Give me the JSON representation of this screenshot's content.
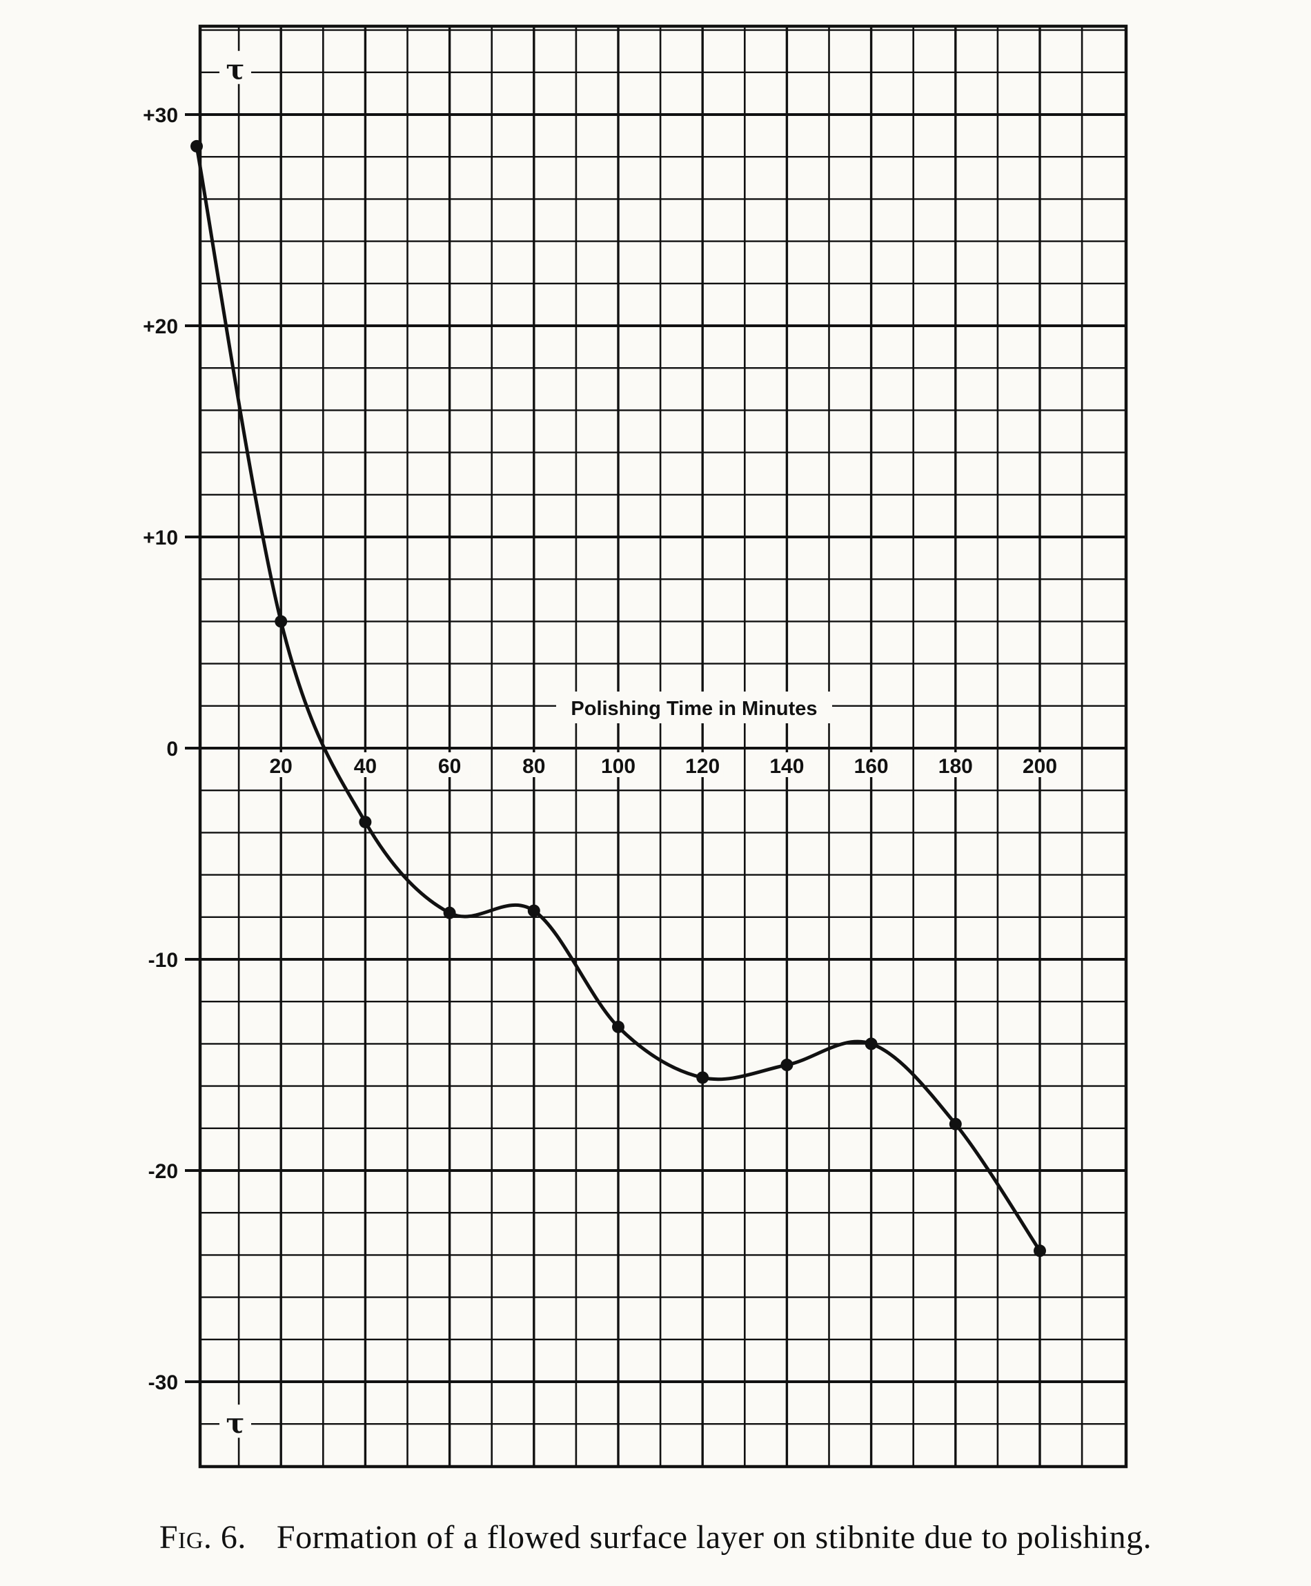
{
  "caption": {
    "figure_label": "Fig. 6.",
    "text": "Formation of a flowed surface layer on stibnite due to polishing."
  },
  "chart_data": {
    "type": "line",
    "title": "",
    "xlabel": "Polishing Time in Minutes",
    "ylabel": "",
    "x_tick_labels": [
      "20",
      "40",
      "60",
      "80",
      "100",
      "120",
      "140",
      "160",
      "180",
      "200"
    ],
    "x_ticks": [
      20,
      40,
      60,
      80,
      100,
      120,
      140,
      160,
      180,
      200
    ],
    "y_tick_labels": [
      "+30",
      "+20",
      "+10",
      "0",
      "-10",
      "-20",
      "-30"
    ],
    "y_ticks": [
      30,
      20,
      10,
      0,
      -10,
      -20,
      -30
    ],
    "xlim": [
      0,
      220
    ],
    "ylim": [
      -34,
      34
    ],
    "grid": true,
    "marker_symbol": "τ",
    "series": [
      {
        "x": [
          0,
          20,
          40,
          60,
          80,
          100,
          120,
          140,
          160,
          180,
          200
        ],
        "y": [
          28.5,
          6,
          -3.5,
          -7.8,
          -7.7,
          -13.2,
          -15.6,
          -15.0,
          -14.0,
          -17.8,
          -23.8
        ]
      }
    ],
    "colors": {
      "line": "#111111",
      "grid": "#111111",
      "paper": "#fbfaf6"
    }
  }
}
